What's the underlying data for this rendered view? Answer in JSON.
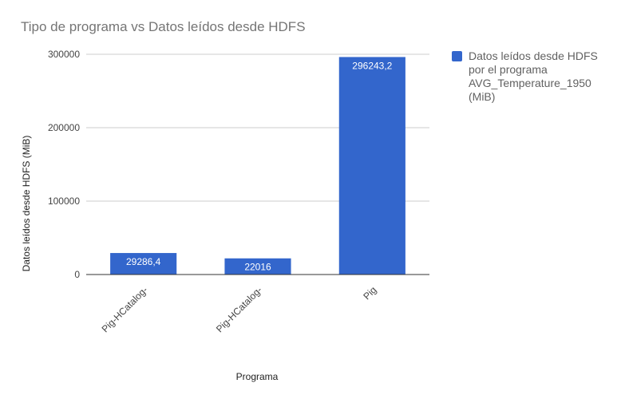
{
  "chart_data": {
    "type": "bar",
    "title": "Tipo de programa vs Datos leídos desde HDFS",
    "xlabel": "Programa",
    "ylabel": "Datos leídos desde HDFS (MiB)",
    "categories": [
      "Pig-HCatalog-",
      "Pig-HCatalog-",
      "Pig"
    ],
    "series": [
      {
        "name": "Datos leídos desde HDFS por el programa AVG_Temperature_1950 (MiB)",
        "values": [
          29286.4,
          22016,
          296243.2
        ],
        "labels": [
          "29286,4",
          "22016",
          "296243,2"
        ],
        "color": "#3366cc"
      }
    ],
    "ylim": [
      0,
      300000
    ],
    "yticks": [
      0,
      100000,
      200000,
      300000
    ],
    "grid": true,
    "legend_position": "right"
  },
  "legend": {
    "text": "Datos leídos desde HDFS\npor el programa\nAVG_Temperature_1950\n(MiB)"
  }
}
